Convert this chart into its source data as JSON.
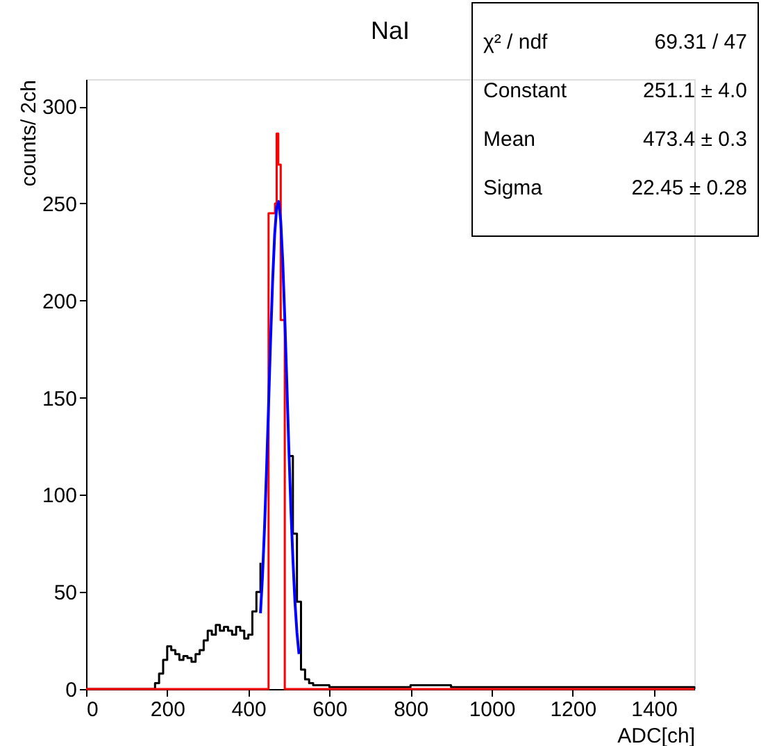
{
  "chart_data": {
    "type": "step",
    "title": "NaI",
    "xlabel": "ADC[ch]",
    "ylabel": "counts/ 2ch",
    "xlim": [
      0,
      1500
    ],
    "xticks": [
      0,
      200,
      400,
      600,
      800,
      1000,
      1200,
      1400
    ],
    "ylim": [
      0,
      314
    ],
    "yticks": [
      0,
      50,
      100,
      150,
      200,
      250,
      300
    ],
    "grid": false,
    "line_style": "solid",
    "series": [
      {
        "color": "#000000",
        "x": [
          0,
          160,
          170,
          180,
          190,
          200,
          210,
          220,
          230,
          240,
          250,
          260,
          270,
          280,
          290,
          300,
          310,
          320,
          330,
          340,
          350,
          360,
          370,
          380,
          390,
          400,
          410,
          420,
          430,
          440,
          450,
          490,
          500,
          510,
          520,
          530,
          540,
          550,
          560,
          580,
          600,
          650,
          700,
          800,
          900,
          1000,
          1100,
          1200,
          1300,
          1400,
          1500
        ],
        "values": [
          0,
          0,
          3,
          8,
          15,
          22,
          20,
          18,
          15,
          17,
          16,
          14,
          18,
          20,
          25,
          30,
          28,
          33,
          30,
          32,
          30,
          28,
          32,
          30,
          26,
          28,
          40,
          50,
          65,
          null,
          null,
          null,
          120,
          80,
          45,
          10,
          5,
          3,
          2,
          2,
          1,
          1,
          1,
          2,
          1,
          1,
          1,
          1,
          1,
          1,
          0
        ]
      },
      {
        "color": "#ff0000",
        "x": [
          0,
          450,
          466,
          470,
          474,
          480,
          490,
          1500
        ],
        "values": [
          0,
          245,
          250,
          286,
          270,
          190,
          0,
          0
        ]
      },
      {
        "type": "line",
        "color": "#0000ff",
        "x": [
          430,
          435,
          440,
          445,
          450,
          455,
          460,
          465,
          470,
          475,
          480,
          485,
          490,
          495,
          500,
          505,
          510,
          515,
          520,
          525
        ],
        "values": [
          39,
          58,
          83,
          113,
          146,
          180,
          210,
          234,
          248,
          251,
          241,
          220,
          191,
          158,
          124,
          93,
          67,
          45,
          29,
          18
        ]
      }
    ],
    "annotations": [
      "χ² / ndf",
      "69.31 / 47",
      "Constant",
      "251.1 ± 4.0",
      "Mean",
      "473.4 ± 0.3",
      "Sigma",
      "22.45 ± 0.28"
    ]
  }
}
